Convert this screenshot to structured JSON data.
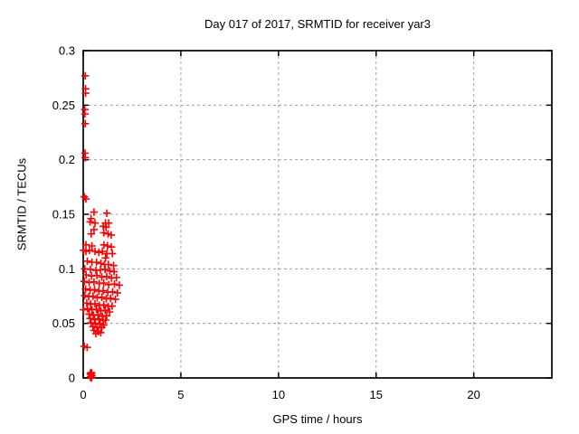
{
  "chart_data": {
    "type": "scatter",
    "title": "Day 017 of 2017, SRMTID for receiver yar3",
    "xlabel": "GPS time / hours",
    "ylabel": "SRMTID / TECUs",
    "xlim": [
      0,
      24
    ],
    "ylim": [
      0,
      0.3
    ],
    "xticks": [
      0,
      5,
      10,
      15,
      20
    ],
    "xtick_labels": [
      "0",
      "5",
      "10",
      "15",
      "20"
    ],
    "yticks": [
      0,
      0.05,
      0.1,
      0.15,
      0.2,
      0.25,
      0.3
    ],
    "ytick_labels": [
      "0",
      "0.05",
      "0.1",
      "0.15",
      "0.2",
      "0.25",
      "0.3"
    ],
    "grid": true,
    "grid_style": "dashed",
    "marker": "plus",
    "colors": {
      "marker": "#ff0000",
      "grid": "#a0a0a0",
      "border": "#000000",
      "background": "#ffffff"
    },
    "series": [
      {
        "name": "SRMTID",
        "color": "#ff0000",
        "points": [
          [
            0.1,
            0.277
          ],
          [
            0.12,
            0.265
          ],
          [
            0.12,
            0.261
          ],
          [
            0.08,
            0.246
          ],
          [
            0.09,
            0.242
          ],
          [
            0.1,
            0.233
          ],
          [
            0.09,
            0.206
          ],
          [
            0.1,
            0.202
          ],
          [
            0.06,
            0.166
          ],
          [
            0.14,
            0.164
          ],
          [
            0.55,
            0.152
          ],
          [
            1.21,
            0.151
          ],
          [
            0.4,
            0.146
          ],
          [
            0.35,
            0.143
          ],
          [
            0.6,
            0.142
          ],
          [
            1.14,
            0.142
          ],
          [
            1.3,
            0.142
          ],
          [
            1.03,
            0.139
          ],
          [
            1.17,
            0.138
          ],
          [
            0.55,
            0.136
          ],
          [
            0.41,
            0.132
          ],
          [
            1.05,
            0.133
          ],
          [
            1.28,
            0.132
          ],
          [
            1.43,
            0.131
          ],
          [
            0.14,
            0.122
          ],
          [
            0.45,
            0.121
          ],
          [
            1.06,
            0.122
          ],
          [
            1.24,
            0.121
          ],
          [
            1.44,
            0.12
          ],
          [
            0.02,
            0.117
          ],
          [
            0.14,
            0.116
          ],
          [
            0.32,
            0.117
          ],
          [
            0.6,
            0.116
          ],
          [
            0.8,
            0.115
          ],
          [
            0.98,
            0.116
          ],
          [
            1.21,
            0.114
          ],
          [
            1.49,
            0.114
          ],
          [
            1.14,
            0.11
          ],
          [
            0.21,
            0.107
          ],
          [
            0.45,
            0.106
          ],
          [
            0.68,
            0.106
          ],
          [
            0.91,
            0.105
          ],
          [
            1.09,
            0.104
          ],
          [
            1.29,
            0.104
          ],
          [
            1.55,
            0.103
          ],
          [
            0.08,
            0.1
          ],
          [
            0.37,
            0.0995
          ],
          [
            0.65,
            0.0985
          ],
          [
            0.88,
            0.099
          ],
          [
            1.12,
            0.0995
          ],
          [
            1.36,
            0.098
          ],
          [
            1.58,
            0.0975
          ],
          [
            0.15,
            0.0945
          ],
          [
            0.42,
            0.0935
          ],
          [
            0.7,
            0.094
          ],
          [
            0.95,
            0.0925
          ],
          [
            1.2,
            0.093
          ],
          [
            1.45,
            0.0915
          ],
          [
            1.7,
            0.092
          ],
          [
            0.05,
            0.0885
          ],
          [
            0.3,
            0.0875
          ],
          [
            0.55,
            0.088
          ],
          [
            0.82,
            0.0865
          ],
          [
            1.05,
            0.087
          ],
          [
            1.3,
            0.0855
          ],
          [
            1.6,
            0.086
          ],
          [
            1.85,
            0.085
          ],
          [
            0.12,
            0.0815
          ],
          [
            0.35,
            0.0805
          ],
          [
            0.58,
            0.081
          ],
          [
            0.8,
            0.0795
          ],
          [
            1.02,
            0.08
          ],
          [
            1.25,
            0.0785
          ],
          [
            1.5,
            0.079
          ],
          [
            1.75,
            0.078
          ],
          [
            0.08,
            0.0755
          ],
          [
            0.28,
            0.0745
          ],
          [
            0.5,
            0.075
          ],
          [
            0.72,
            0.0735
          ],
          [
            0.95,
            0.074
          ],
          [
            1.18,
            0.0725
          ],
          [
            1.4,
            0.073
          ],
          [
            1.65,
            0.072
          ],
          [
            0.18,
            0.0685
          ],
          [
            0.38,
            0.0675
          ],
          [
            0.6,
            0.068
          ],
          [
            0.82,
            0.0665
          ],
          [
            1.05,
            0.067
          ],
          [
            1.28,
            0.0655
          ],
          [
            1.48,
            0.066
          ],
          [
            0.02,
            0.0625
          ],
          [
            0.22,
            0.0635
          ],
          [
            0.45,
            0.0625
          ],
          [
            0.68,
            0.063
          ],
          [
            0.9,
            0.0615
          ],
          [
            1.12,
            0.062
          ],
          [
            1.35,
            0.0605
          ],
          [
            0.3,
            0.0585
          ],
          [
            0.52,
            0.0575
          ],
          [
            0.75,
            0.058
          ],
          [
            0.98,
            0.0565
          ],
          [
            1.2,
            0.057
          ],
          [
            0.35,
            0.0545
          ],
          [
            0.58,
            0.0535
          ],
          [
            0.8,
            0.054
          ],
          [
            1.02,
            0.0525
          ],
          [
            1.15,
            0.053
          ],
          [
            0.4,
            0.0505
          ],
          [
            0.62,
            0.0495
          ],
          [
            0.85,
            0.05
          ],
          [
            1.05,
            0.0485
          ],
          [
            0.5,
            0.047
          ],
          [
            0.72,
            0.046
          ],
          [
            0.95,
            0.0465
          ],
          [
            0.55,
            0.0435
          ],
          [
            0.78,
            0.0425
          ],
          [
            0.9,
            0.0415
          ],
          [
            0.65,
            0.0405
          ],
          [
            0.05,
            0.029
          ],
          [
            0.2,
            0.028
          ],
          [
            0.36,
            0.004
          ],
          [
            0.4,
            0.003
          ],
          [
            0.44,
            0.002
          ],
          [
            0.38,
            0.001
          ],
          [
            0.42,
            0.0
          ],
          [
            0.4,
            0.005
          ],
          [
            0.37,
            0.0005
          ],
          [
            0.43,
            0.0045
          ]
        ]
      }
    ]
  }
}
